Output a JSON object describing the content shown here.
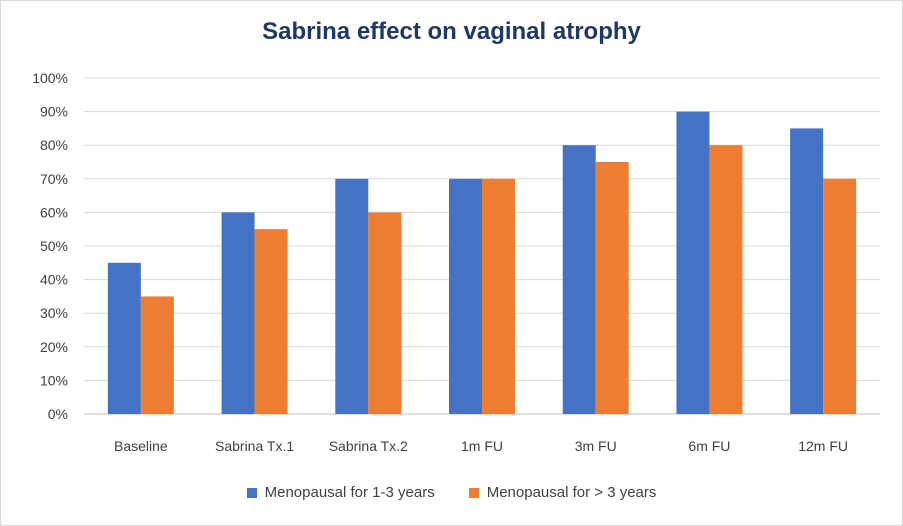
{
  "chart_data": {
    "type": "bar",
    "title": "Sabrina effect on vaginal atrophy",
    "xlabel": "",
    "ylabel": "",
    "categories": [
      "Baseline",
      "Sabrina Tx.1",
      "Sabrina Tx.2",
      "1m FU",
      "3m FU",
      "6m FU",
      "12m FU"
    ],
    "series": [
      {
        "name": "Menopausal for 1-3 years",
        "color": "#4472c4",
        "values": [
          45,
          60,
          70,
          70,
          80,
          90,
          85
        ]
      },
      {
        "name": "Menopausal for > 3 years",
        "color": "#ed7d31",
        "values": [
          35,
          55,
          60,
          70,
          75,
          80,
          70
        ]
      }
    ],
    "ylim": [
      0,
      100
    ],
    "yticks": [
      "0%",
      "10%",
      "20%",
      "30%",
      "40%",
      "50%",
      "60%",
      "70%",
      "80%",
      "90%",
      "100%"
    ],
    "grid": true,
    "legend_position": "bottom"
  }
}
